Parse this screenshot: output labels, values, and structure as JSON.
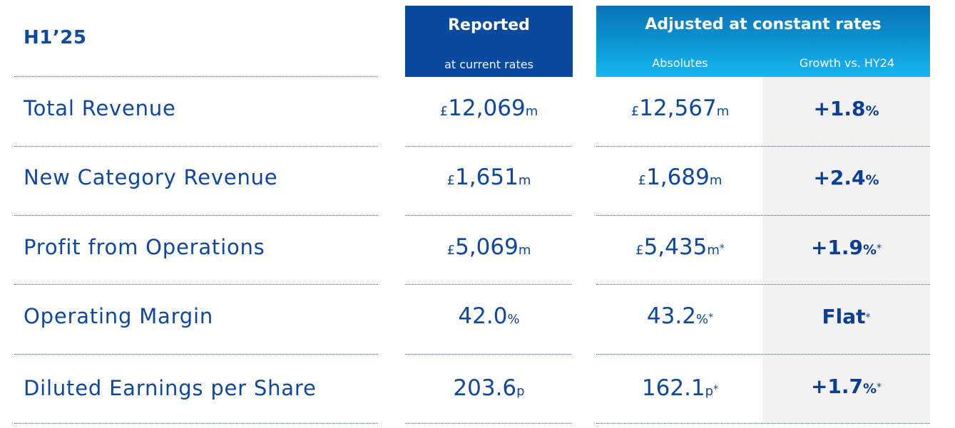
{
  "header": {
    "period": "H1’25",
    "reported_title": "Reported",
    "reported_sub": "at current rates",
    "adjusted_title": "Adjusted at constant rates",
    "absolutes_label": "Absolutes",
    "growth_label": "Growth vs. HY24"
  },
  "rows": [
    {
      "label": "Total Revenue",
      "rep_pre": "£",
      "rep_val": "12,069",
      "rep_unit": "m",
      "adj_pre": "£",
      "adj_val": "12,567",
      "adj_unit": "m",
      "adj_star": "",
      "growth_val": "+1.8",
      "growth_unit": "%",
      "growth_star": ""
    },
    {
      "label": "New Category Revenue",
      "rep_pre": "£",
      "rep_val": "1,651",
      "rep_unit": "m",
      "adj_pre": "£",
      "adj_val": "1,689",
      "adj_unit": "m",
      "adj_star": "",
      "growth_val": "+2.4",
      "growth_unit": "%",
      "growth_star": ""
    },
    {
      "label": "Profit from Operations",
      "rep_pre": "£",
      "rep_val": "5,069",
      "rep_unit": "m",
      "adj_pre": "£",
      "adj_val": "5,435",
      "adj_unit": "m",
      "adj_star": "*",
      "growth_val": "+1.9",
      "growth_unit": "%",
      "growth_star": "*"
    },
    {
      "label": "Operating Margin",
      "rep_pre": "",
      "rep_val": "42.0",
      "rep_unit": "%",
      "adj_pre": "",
      "adj_val": "43.2",
      "adj_unit": "%",
      "adj_star": "*",
      "growth_val": "Flat",
      "growth_unit": "",
      "growth_star": "*"
    },
    {
      "label": "Diluted Earnings per Share",
      "rep_pre": "",
      "rep_val": "203.6",
      "rep_unit": "p",
      "adj_pre": "",
      "adj_val": "162.1",
      "adj_unit": "p",
      "adj_star": "*",
      "growth_val": "+1.7",
      "growth_unit": "%",
      "growth_star": "*"
    }
  ]
}
